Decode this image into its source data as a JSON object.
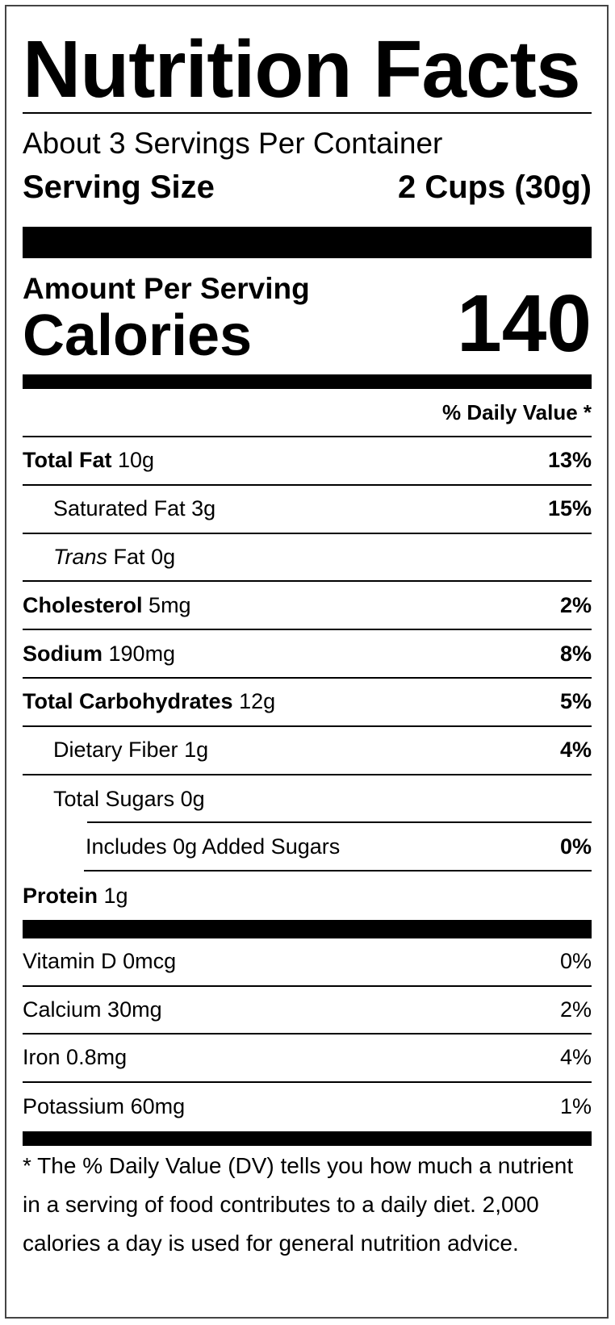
{
  "title": "Nutrition Facts",
  "servings_per_container": "About 3 Servings Per Container",
  "serving_size": {
    "label": "Serving Size",
    "value": "2 Cups (30g)"
  },
  "amount_per_serving": "Amount Per Serving",
  "calories": {
    "label": "Calories",
    "value": "140"
  },
  "daily_value_header": "% Daily Value *",
  "nutrients": [
    {
      "name": "Total Fat",
      "amount": "10g",
      "dv": "13%",
      "bold": true,
      "indent": 0
    },
    {
      "name": "Saturated Fat",
      "amount": "3g",
      "dv": "15%",
      "bold": false,
      "indent": 1
    },
    {
      "name": "Trans",
      "name_suffix": "Fat",
      "amount": "0g",
      "dv": "",
      "bold": false,
      "italic": true,
      "indent": 1
    },
    {
      "name": "Cholesterol",
      "amount": "5mg",
      "dv": "2%",
      "bold": true,
      "indent": 0
    },
    {
      "name": "Sodium",
      "amount": "190mg",
      "dv": "8%",
      "bold": true,
      "indent": 0
    },
    {
      "name": "Total Carbohydrates",
      "amount": "12g",
      "dv": "5%",
      "bold": true,
      "indent": 0
    },
    {
      "name": "Dietary Fiber",
      "amount": "1g",
      "dv": "4%",
      "bold": false,
      "indent": 1
    },
    {
      "name": "Total Sugars",
      "amount": "0g",
      "dv": "",
      "bold": false,
      "indent": 1
    },
    {
      "name": "Includes 0g Added Sugars",
      "amount": "",
      "dv": "0%",
      "bold": false,
      "indent": 2
    },
    {
      "name": "Protein",
      "amount": "1g",
      "dv": "",
      "bold": true,
      "indent": 0
    }
  ],
  "vitamins": [
    {
      "name": "Vitamin D",
      "amount": "0mcg",
      "dv": "0%"
    },
    {
      "name": "Calcium",
      "amount": "30mg",
      "dv": "2%"
    },
    {
      "name": "Iron",
      "amount": "0.8mg",
      "dv": "4%"
    },
    {
      "name": "Potassium",
      "amount": "60mg",
      "dv": "1%"
    }
  ],
  "footnote": "* The % Daily Value (DV) tells you how much a nutrient in a serving of food contributes to a daily diet. 2,000 calories a day is used for general nutrition advice."
}
